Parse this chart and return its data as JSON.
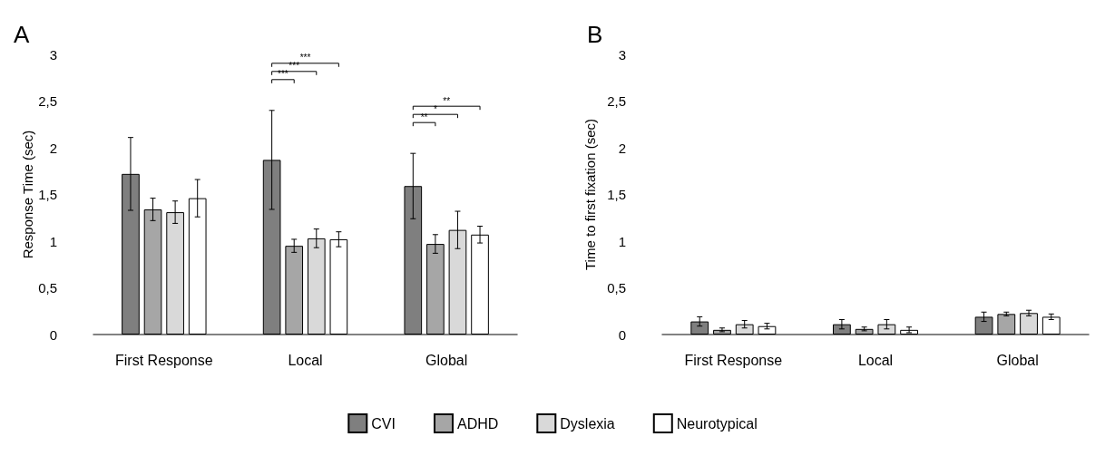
{
  "chart_data": [
    {
      "type": "bar",
      "title": "A",
      "ylabel": "Response Time (sec)",
      "categories": [
        "First Response",
        "Local",
        "Global"
      ],
      "ylim": [
        0,
        3
      ],
      "yticks": [
        0,
        {
          "value": 0.5,
          "label": "0,5"
        },
        1,
        {
          "value": 1.5,
          "label": "1,5"
        },
        2,
        {
          "value": 2.5,
          "label": "2,5"
        },
        3
      ],
      "grid": false,
      "legend": "bottom",
      "series": [
        {
          "name": "CVI",
          "color": "#7f7f7f",
          "values": [
            1.72,
            1.87,
            1.59
          ],
          "errors": [
            0.39,
            0.53,
            0.35
          ]
        },
        {
          "name": "ADHD",
          "color": "#a6a6a6",
          "values": [
            1.34,
            0.95,
            0.97
          ],
          "errors": [
            0.12,
            0.07,
            0.1
          ]
        },
        {
          "name": "Dyslexia",
          "color": "#d9d9d9",
          "values": [
            1.31,
            1.03,
            1.12
          ],
          "errors": [
            0.12,
            0.1,
            0.2
          ]
        },
        {
          "name": "Neurotypical",
          "color": "#ffffff",
          "values": [
            1.46,
            1.02,
            1.07
          ],
          "errors": [
            0.2,
            0.08,
            0.09
          ]
        }
      ],
      "annotations": [
        "***",
        "***",
        "***",
        "**",
        "*",
        "**"
      ]
    },
    {
      "type": "bar",
      "title": "B",
      "ylabel": "Time to first fixation (sec)",
      "categories": [
        "First Response",
        "Local",
        "Global"
      ],
      "ylim": [
        0,
        3
      ],
      "yticks": [
        0,
        {
          "value": 0.5,
          "label": "0,5"
        },
        1,
        {
          "value": 1.5,
          "label": "1,5"
        },
        2,
        {
          "value": 2.5,
          "label": "2,5"
        },
        3
      ],
      "grid": false,
      "series": [
        {
          "color": "#7f7f7f",
          "values": [
            0.14,
            0.11,
            0.19
          ],
          "errors": [
            0.05,
            0.05,
            0.05
          ]
        },
        {
          "color": "#a6a6a6",
          "values": [
            0.05,
            0.06,
            0.22
          ],
          "errors": [
            0.02,
            0.02,
            0.02
          ]
        },
        {
          "color": "#d9d9d9",
          "values": [
            0.11,
            0.11,
            0.23
          ],
          "errors": [
            0.04,
            0.05,
            0.03
          ]
        },
        {
          "color": "#ffffff",
          "values": [
            0.09,
            0.05,
            0.19
          ],
          "errors": [
            0.03,
            0.03,
            0.03
          ]
        }
      ]
    }
  ]
}
